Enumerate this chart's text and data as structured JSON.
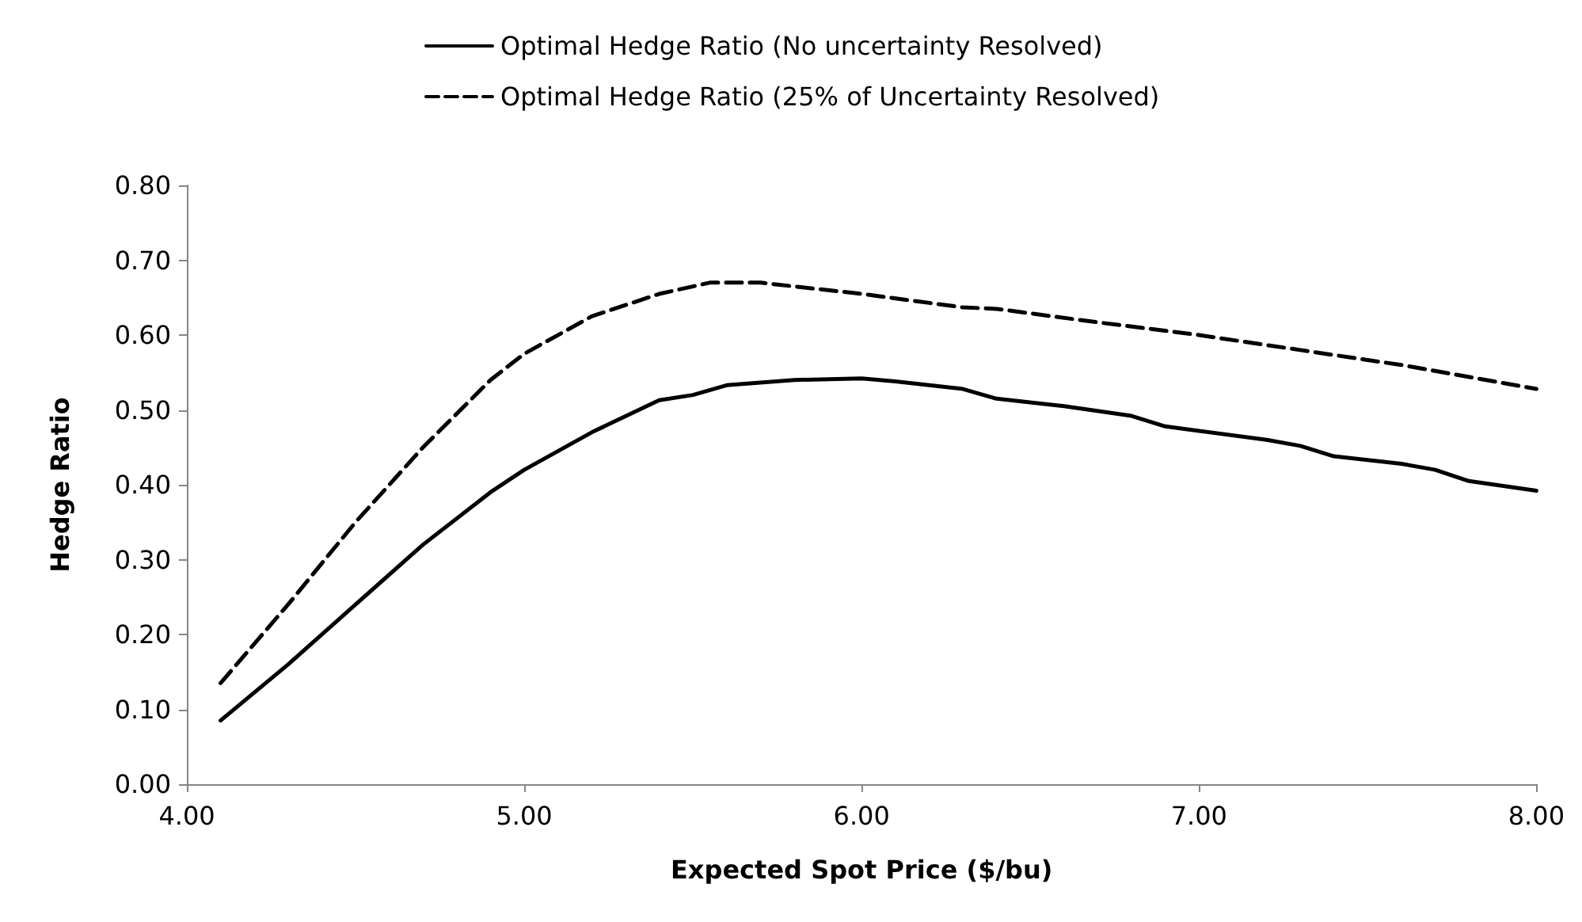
{
  "chart_data": {
    "type": "line",
    "xlabel": "Expected Spot Price ($/bu)",
    "ylabel": "Hedge Ratio",
    "xlim": [
      4,
      8
    ],
    "xticks": [
      {
        "value": 4,
        "label": "4.00"
      },
      {
        "value": 5,
        "label": "5.00"
      },
      {
        "value": 6,
        "label": "6.00"
      },
      {
        "value": 7,
        "label": "7.00"
      },
      {
        "value": 8,
        "label": "8.00"
      }
    ],
    "ylim": [
      0,
      0.8
    ],
    "yticks": [
      {
        "value": 0,
        "label": "0.00"
      },
      {
        "value": 0.1,
        "label": "0.10"
      },
      {
        "value": 0.2,
        "label": "0.20"
      },
      {
        "value": 0.3,
        "label": "0.30"
      },
      {
        "value": 0.4,
        "label": "0.40"
      },
      {
        "value": 0.5,
        "label": "0.50"
      },
      {
        "value": 0.6,
        "label": "0.60"
      },
      {
        "value": 0.7,
        "label": "0.70"
      },
      {
        "value": 0.8,
        "label": "0.80"
      }
    ],
    "grid": false,
    "legend": "top",
    "marker": "none",
    "series": [
      {
        "name": "Optimal Hedge Ratio (No uncertainty Resolved)",
        "color": "#000000",
        "line_style": "solid",
        "x": [
          4.1,
          4.3,
          4.5,
          4.7,
          4.9,
          5.0,
          5.2,
          5.4,
          5.5,
          5.6,
          5.8,
          6.0,
          6.1,
          6.3,
          6.4,
          6.6,
          6.8,
          6.9,
          7.0,
          7.2,
          7.3,
          7.4,
          7.6,
          7.7,
          7.8,
          8.0
        ],
        "values": [
          0.085,
          0.16,
          0.24,
          0.32,
          0.39,
          0.42,
          0.47,
          0.513,
          0.52,
          0.533,
          0.54,
          0.542,
          0.538,
          0.528,
          0.515,
          0.505,
          0.492,
          0.478,
          0.472,
          0.46,
          0.452,
          0.438,
          0.428,
          0.42,
          0.405,
          0.392
        ]
      },
      {
        "name": "Optimal Hedge Ratio (25% of Uncertainty Resolved)",
        "color": "#000000",
        "line_style": "dashed",
        "x": [
          4.1,
          4.3,
          4.5,
          4.7,
          4.9,
          5.0,
          5.2,
          5.4,
          5.55,
          5.7,
          6.0,
          6.3,
          6.4,
          6.7,
          7.0,
          7.3,
          7.6,
          8.0
        ],
        "values": [
          0.135,
          0.24,
          0.35,
          0.45,
          0.54,
          0.575,
          0.625,
          0.655,
          0.67,
          0.67,
          0.655,
          0.637,
          0.635,
          0.617,
          0.6,
          0.58,
          0.56,
          0.528
        ]
      }
    ]
  }
}
